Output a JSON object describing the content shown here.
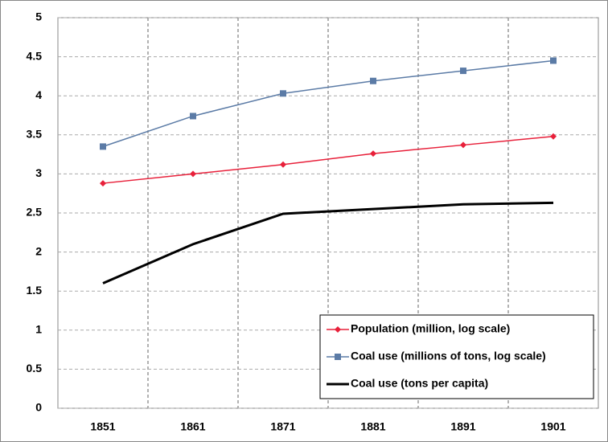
{
  "chart_data": {
    "type": "line",
    "categories": [
      "1851",
      "1861",
      "1871",
      "1881",
      "1891",
      "1901"
    ],
    "series": [
      {
        "name": "Population (million, log scale)",
        "color": "#e8203a",
        "marker": "diamond",
        "values": [
          2.88,
          3.0,
          3.12,
          3.26,
          3.37,
          3.48
        ]
      },
      {
        "name": "Coal use (millions of tons, log scale)",
        "color": "#5b7ba6",
        "marker": "square",
        "values": [
          3.35,
          3.74,
          4.03,
          4.19,
          4.32,
          4.45
        ]
      },
      {
        "name": "Coal use (tons per capita)",
        "color": "#000000",
        "marker": "none",
        "values": [
          1.6,
          2.1,
          2.49,
          2.55,
          2.61,
          2.63
        ]
      }
    ],
    "ylim": [
      0,
      5
    ],
    "yticks": [
      0,
      0.5,
      1,
      1.5,
      2,
      2.5,
      3,
      3.5,
      4,
      4.5,
      5
    ],
    "grid": true,
    "legend": "lower right"
  }
}
